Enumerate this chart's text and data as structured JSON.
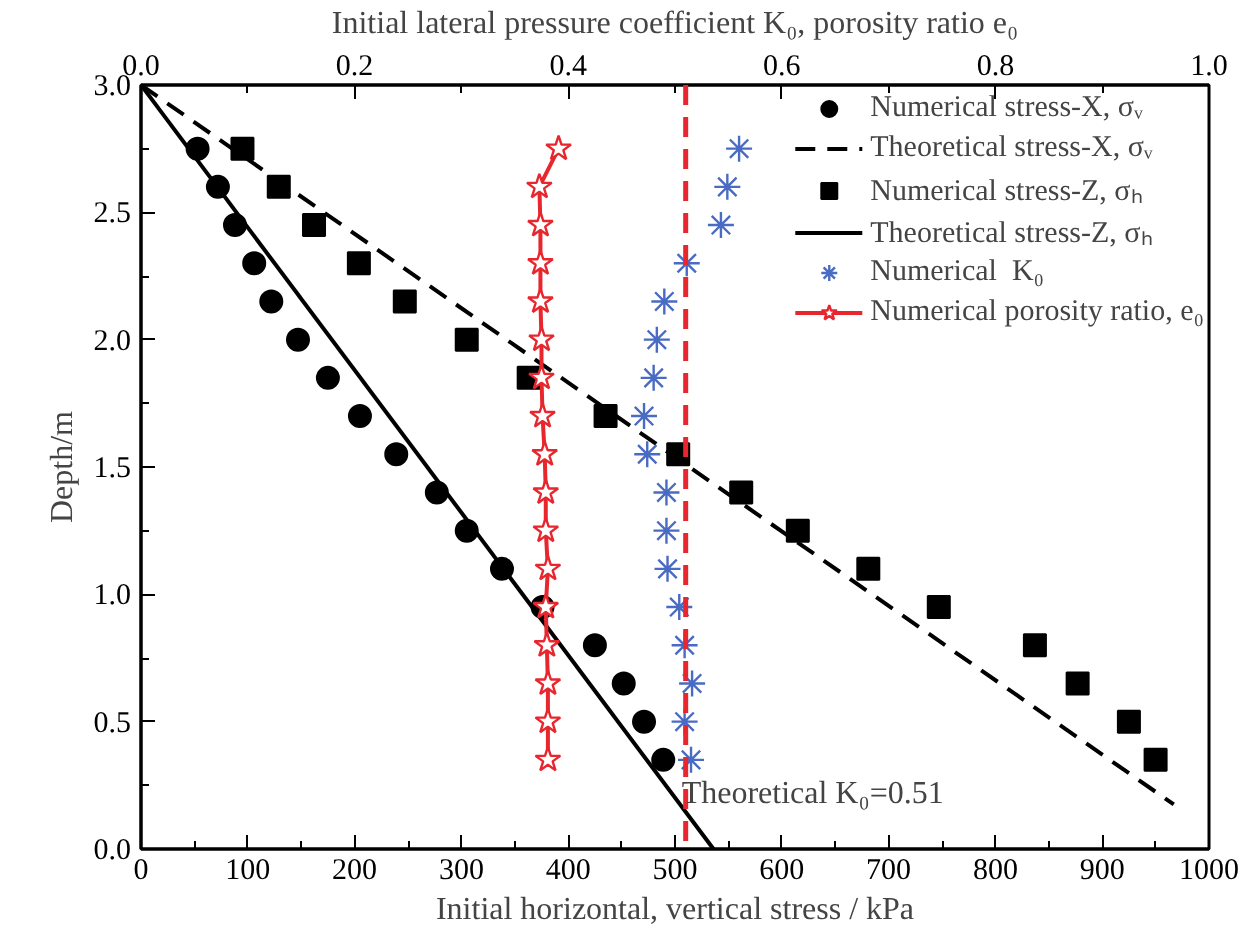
{
  "chart_data": {
    "type": "scatter",
    "xlabel": "Initial horizontal, vertical stress / kPa",
    "x2label": "Initial lateral pressure coefficient K₀, porosity ratio e₀",
    "ylabel": "Depth/m",
    "xlim": [
      0,
      1000
    ],
    "xticks": [
      0,
      100,
      200,
      300,
      400,
      500,
      600,
      700,
      800,
      900,
      1000
    ],
    "x2lim": [
      0,
      1
    ],
    "x2ticks": [
      {
        "value": 0,
        "label": "0.0"
      },
      {
        "value": 0.2,
        "label": "0.2"
      },
      {
        "value": 0.4,
        "label": "0.4"
      },
      {
        "value": 0.6,
        "label": "0.6"
      },
      {
        "value": 0.8,
        "label": "0.8"
      },
      {
        "value": 1,
        "label": "1.0"
      }
    ],
    "ylim": [
      0,
      3
    ],
    "yticks": [
      {
        "value": 0,
        "label": "0.0"
      },
      {
        "value": 0.5,
        "label": "0.5"
      },
      {
        "value": 1,
        "label": "1.0"
      },
      {
        "value": 1.5,
        "label": "1.5"
      },
      {
        "value": 2,
        "label": "2.0"
      },
      {
        "value": 2.5,
        "label": "2.5"
      },
      {
        "value": 3,
        "label": "3.0"
      }
    ],
    "grid": false,
    "legend": "top right",
    "series": [
      {
        "name": "Numerical stress-X, σᵥ",
        "marker": "circle",
        "color": "#000000",
        "x": [
          53,
          72,
          88,
          106,
          122,
          147,
          175,
          205,
          239,
          277,
          305,
          338,
          376,
          425,
          452,
          471,
          489
        ],
        "values": [
          2.75,
          2.6,
          2.45,
          2.3,
          2.15,
          2.0,
          1.85,
          1.7,
          1.55,
          1.4,
          1.25,
          1.1,
          0.95,
          0.8,
          0.65,
          0.5,
          0.35
        ]
      },
      {
        "name": "Theoretical stress-X, σᵥ",
        "type": "line",
        "line_style": "dashed",
        "marker": "none",
        "color": "#000000",
        "x": [
          0,
          967
        ],
        "values": [
          3.0,
          0.175
        ]
      },
      {
        "name": "Numerical stress-Z, σₕ",
        "marker": "square",
        "color": "#000000",
        "x": [
          95,
          129,
          162,
          204,
          247,
          305,
          363,
          435,
          503,
          562,
          615,
          681,
          747,
          837,
          877,
          925,
          950
        ],
        "values": [
          2.75,
          2.6,
          2.45,
          2.3,
          2.15,
          2.0,
          1.85,
          1.7,
          1.55,
          1.4,
          1.25,
          1.1,
          0.95,
          0.8,
          0.65,
          0.5,
          0.35
        ]
      },
      {
        "name": "Theoretical stress-Z, σₕ",
        "type": "line",
        "line_style": "solid",
        "marker": "none",
        "color": "#000000",
        "x": [
          0,
          536
        ],
        "values": [
          3.0,
          0.0
        ]
      },
      {
        "name": "Numerical  K₀",
        "marker": "cross",
        "color": "#4a6bc4",
        "axis": "x2",
        "x": [
          0.56,
          0.549,
          0.543,
          0.511,
          0.49,
          0.483,
          0.48,
          0.471,
          0.474,
          0.492,
          0.492,
          0.493,
          0.504,
          0.509,
          0.516,
          0.509,
          0.515
        ],
        "values": [
          2.75,
          2.6,
          2.45,
          2.3,
          2.15,
          2.0,
          1.85,
          1.7,
          1.55,
          1.4,
          1.25,
          1.1,
          0.95,
          0.8,
          0.65,
          0.5,
          0.35
        ]
      },
      {
        "name": "Numerical porosity ratio, e₀",
        "type": "line",
        "line_style": "solid",
        "marker": "star",
        "color": "#e8262e",
        "axis": "x2",
        "x": [
          0.391,
          0.373,
          0.374,
          0.374,
          0.374,
          0.375,
          0.375,
          0.376,
          0.378,
          0.379,
          0.379,
          0.381,
          0.379,
          0.38,
          0.381,
          0.381,
          0.381
        ],
        "values": [
          2.75,
          2.6,
          2.45,
          2.3,
          2.15,
          2.0,
          1.85,
          1.7,
          1.55,
          1.4,
          1.25,
          1.1,
          0.95,
          0.8,
          0.65,
          0.5,
          0.35
        ]
      }
    ],
    "ref_lines": [
      {
        "axis": "x2",
        "value": 0.51,
        "label": "Theoretical K₀=0.51",
        "color": "#e8262e",
        "line_style": "dashed"
      }
    ]
  }
}
